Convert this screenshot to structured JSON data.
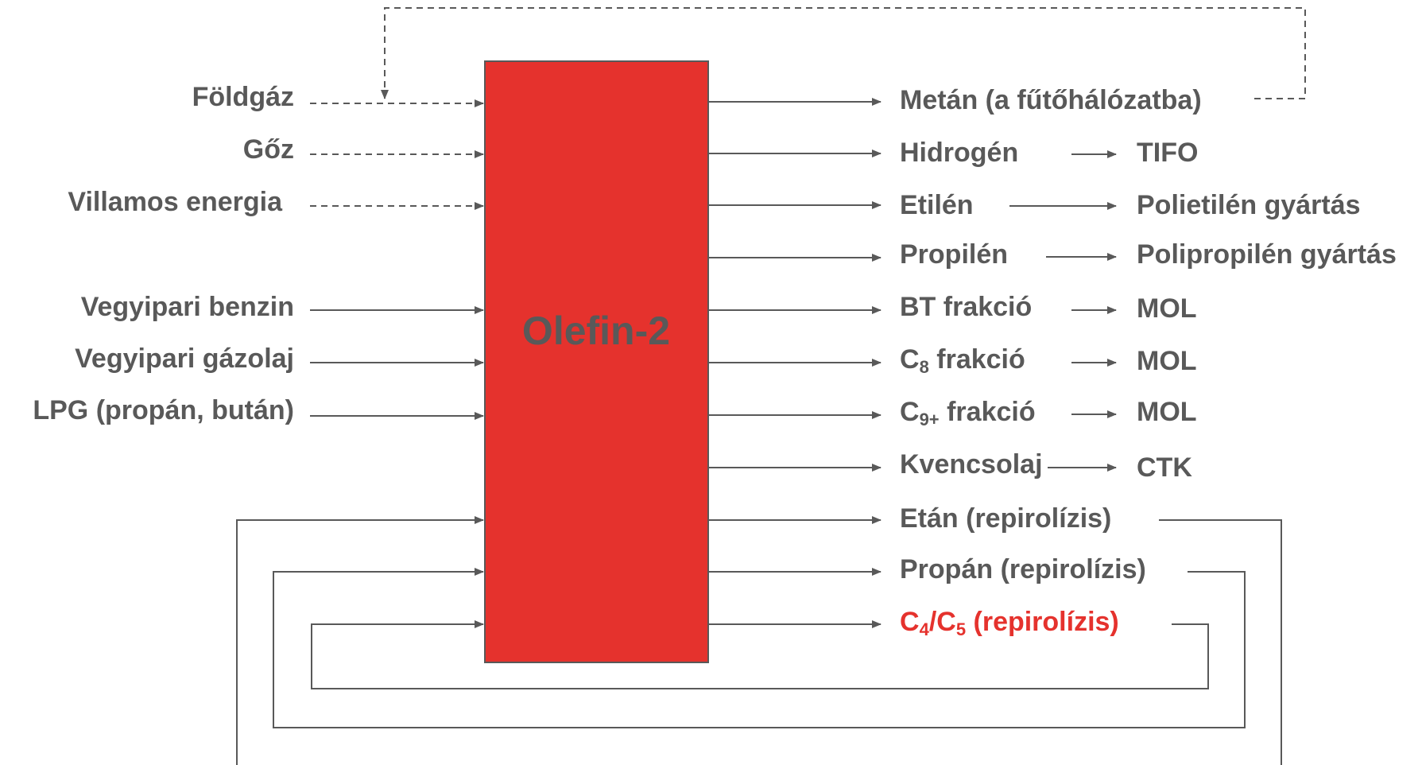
{
  "process": {
    "name": "Olefin-2",
    "color": "#e5322d"
  },
  "inputs": {
    "utilities": [
      "Földgáz",
      "Gőz",
      "Villamos energia"
    ],
    "feeds": [
      "Vegyipari benzin",
      "Vegyipari gázolaj",
      "LPG (propán, bután)"
    ]
  },
  "outputs": [
    {
      "product": "Metán (a fűtőhálózatba)",
      "destination": ""
    },
    {
      "product": "Hidrogén",
      "destination": "TIFO"
    },
    {
      "product": "Etilén",
      "destination": "Polietilén gyártás"
    },
    {
      "product": "Propilén",
      "destination": "Polipropilén gyártás"
    },
    {
      "product": "BT frakció",
      "destination": "MOL"
    },
    {
      "product_base": "C",
      "product_sub": "8",
      "product_rest": " frakció",
      "destination": "MOL"
    },
    {
      "product_base": "C",
      "product_sub": "9+",
      "product_rest": " frakció",
      "destination": "MOL"
    },
    {
      "product": "Kvencsolaj",
      "destination": "CTK"
    }
  ],
  "recycles": [
    {
      "product": "Etán (repirolízis)"
    },
    {
      "product": "Propán (repirolízis)"
    },
    {
      "c1": "C",
      "s1": "4",
      "c2": "/C",
      "s2": "5",
      "rest": " (repirolízis)",
      "color": "#e5322d"
    }
  ],
  "colors": {
    "line": "#595959",
    "text": "#595959",
    "highlight": "#e5322d"
  }
}
